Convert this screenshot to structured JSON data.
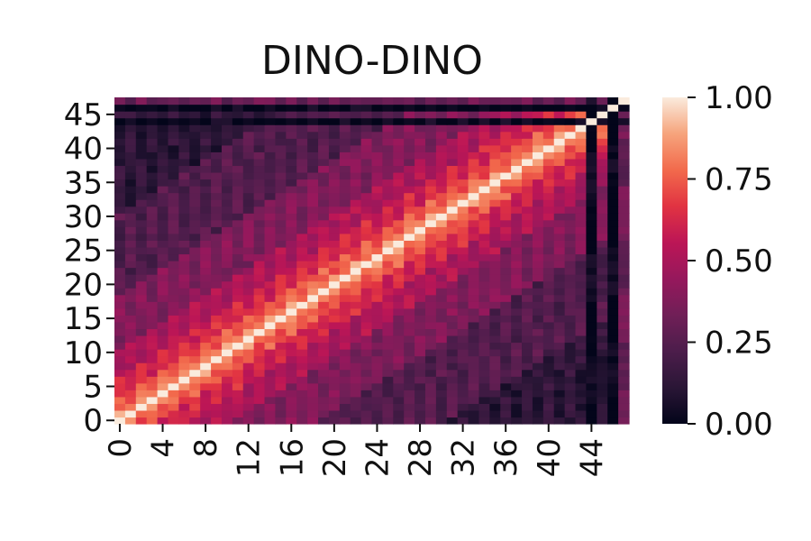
{
  "chart_data": {
    "type": "heatmap",
    "title": "DINO-DINO",
    "xlabel": "",
    "ylabel": "",
    "n": 48,
    "x_tick_values": [
      0,
      4,
      8,
      12,
      16,
      20,
      24,
      28,
      32,
      36,
      40,
      44
    ],
    "x_tick_labels": [
      "0",
      "4",
      "8",
      "12",
      "16",
      "20",
      "24",
      "28",
      "32",
      "36",
      "40",
      "44"
    ],
    "y_tick_values": [
      0,
      5,
      10,
      15,
      20,
      25,
      30,
      35,
      40,
      45
    ],
    "y_tick_labels": [
      "0",
      "5",
      "10",
      "15",
      "20",
      "25",
      "30",
      "35",
      "40",
      "45"
    ],
    "y_origin": "bottom",
    "value_range": [
      0,
      1
    ],
    "colormap": "rocket",
    "colormap_stops": [
      "#03051a",
      "#2a1636",
      "#4c1d4b",
      "#701f57",
      "#96185c",
      "#bc1656",
      "#e13342",
      "#f26a4c",
      "#f6a47c",
      "#faebdd"
    ],
    "colorbar": {
      "ticks": [
        0.0,
        0.25,
        0.5,
        0.75,
        1.0
      ],
      "tick_labels": [
        "0.00",
        "0.25",
        "0.50",
        "0.75",
        "1.00"
      ]
    },
    "similarity_model": {
      "description": "approximate pairwise similarity: diagonal = 1, decays with index distance; block scores per layer range",
      "diagonal": 1.0,
      "decay_bands": [
        {
          "max_distance": 1,
          "value": 0.88
        },
        {
          "max_distance": 3,
          "value": 0.78
        },
        {
          "max_distance": 6,
          "value": 0.66
        },
        {
          "max_distance": 10,
          "value": 0.55
        },
        {
          "max_distance": 18,
          "value": 0.42
        },
        {
          "max_distance": 30,
          "value": 0.28
        },
        {
          "max_distance": 48,
          "value": 0.16
        }
      ],
      "low_rows": [
        {
          "index": 44,
          "value": 0.05
        },
        {
          "index": 46,
          "value": 0.04
        }
      ],
      "early_offset_rows": [
        {
          "index": 47,
          "value": 0.35
        }
      ]
    }
  }
}
